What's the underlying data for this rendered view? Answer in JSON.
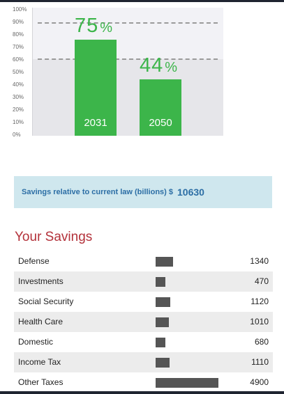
{
  "chart": {
    "y_ticks": [
      "100%",
      "90%",
      "80%",
      "70%",
      "60%",
      "50%",
      "40%",
      "30%",
      "20%",
      "10%",
      "0%"
    ],
    "bars": [
      {
        "year": "2031",
        "value": 75,
        "label_value": "75",
        "label_unit": "%"
      },
      {
        "year": "2050",
        "value": 44,
        "label_value": "44",
        "label_unit": "%"
      }
    ],
    "reference_lines": [
      88,
      60
    ],
    "colors": {
      "bar": "#3cb54a",
      "band_light": "#f2f2f6",
      "band_dark": "#e6e6ea"
    }
  },
  "chart_data": {
    "type": "bar",
    "categories": [
      "2031",
      "2050"
    ],
    "values": [
      75,
      44
    ],
    "ylim": [
      0,
      100
    ],
    "reference_lines": [
      88,
      60
    ]
  },
  "banner": {
    "label": "Savings relative to current law (billions) $",
    "value": "10630"
  },
  "savings": {
    "title": "Your Savings",
    "max_value": 4900,
    "rows": [
      {
        "label": "Defense",
        "value": 1340,
        "display": "1340"
      },
      {
        "label": "Investments",
        "value": 470,
        "display": "470"
      },
      {
        "label": "Social Security",
        "value": 1120,
        "display": "1120"
      },
      {
        "label": "Health Care",
        "value": 1010,
        "display": "1010"
      },
      {
        "label": "Domestic",
        "value": 680,
        "display": "680"
      },
      {
        "label": "Income Tax",
        "value": 1110,
        "display": "1110"
      },
      {
        "label": "Other Taxes",
        "value": 4900,
        "display": "4900"
      }
    ]
  }
}
